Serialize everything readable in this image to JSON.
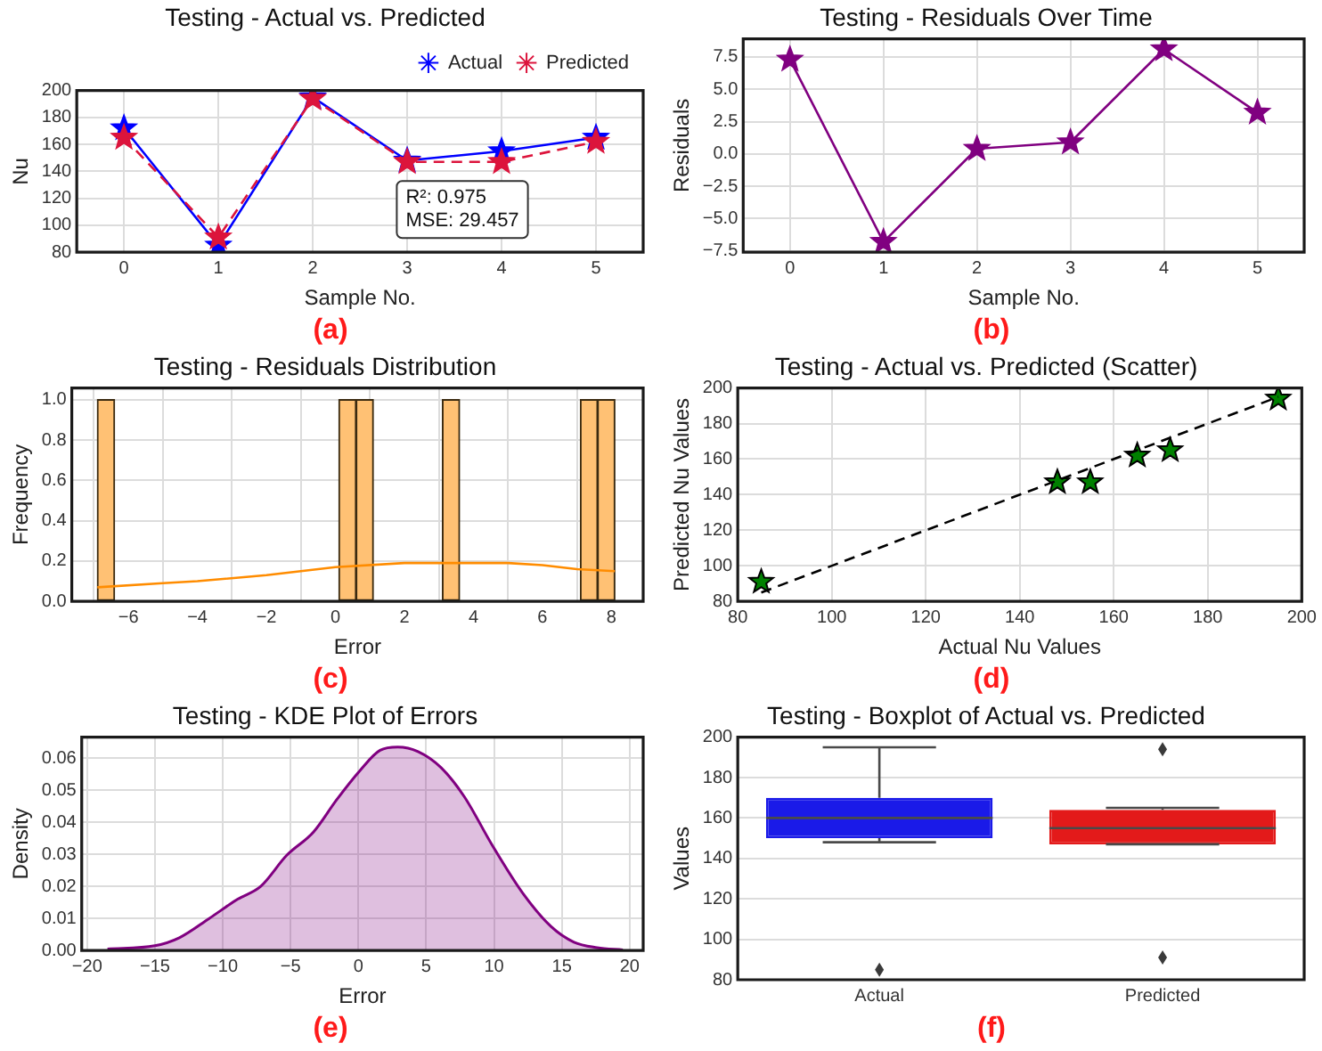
{
  "chart_data": [
    {
      "type": "line",
      "title": "Testing - Actual vs. Predicted",
      "xlabel": "Sample No.",
      "ylabel": "Nu",
      "categories": [
        "0",
        "1",
        "2",
        "3",
        "4",
        "5"
      ],
      "series": [
        {
          "name": "Actual",
          "color": "#0000ff",
          "values": [
            172,
            85,
            195,
            148,
            155,
            165
          ]
        },
        {
          "name": "Predicted",
          "color": "#dc143c",
          "line_style": "dashed",
          "values": [
            165,
            91,
            194,
            147,
            147,
            162
          ]
        }
      ],
      "marker": "star",
      "ylim": [
        80,
        200
      ],
      "yticks": [
        80,
        100,
        120,
        140,
        160,
        180,
        200
      ],
      "grid": true,
      "legend": "top right",
      "annotations": [
        "R²: 0.975\nMSE: 29.457",
        "(a)"
      ]
    },
    {
      "type": "line",
      "title": "Testing - Residuals Over Time",
      "xlabel": "Sample No.",
      "ylabel": "Residuals",
      "categories": [
        "0",
        "1",
        "2",
        "3",
        "4",
        "5"
      ],
      "series": [
        {
          "color": "#800080",
          "values": [
            7.3,
            -6.8,
            0.4,
            0.9,
            8.1,
            3.2
          ]
        }
      ],
      "marker": "star",
      "ylim": [
        -7.6,
        8.9
      ],
      "yticks": [
        {
          "value": -7.5,
          "label": "−7.5"
        },
        {
          "value": -5,
          "label": "−5.0"
        },
        {
          "value": -2.5,
          "label": "−2.5"
        },
        {
          "value": 0,
          "label": "0.0"
        },
        {
          "value": 2.5,
          "label": "2.5"
        },
        {
          "value": 5,
          "label": "5.0"
        },
        {
          "value": 7.5,
          "label": "7.5"
        }
      ],
      "grid": true,
      "annotations": [
        "(b)"
      ]
    },
    {
      "type": "histogram",
      "title": "Testing - Residuals Distribution",
      "xlabel": "Error",
      "ylabel": "Frequency",
      "series": [
        {
          "type": "histogram",
          "color": "#ffc174",
          "bins": [
            -6.9,
            -6.4,
            -5.9,
            -5.4,
            -4.9,
            -4.4,
            -3.9,
            -3.4,
            -2.9,
            -2.4,
            -1.9,
            -1.4,
            -0.9,
            -0.4,
            0.1,
            0.6,
            1.1,
            1.6,
            2.1,
            2.6,
            3.1,
            3.6,
            4.1,
            4.6,
            5.1,
            5.6,
            6.1,
            6.6,
            7.1,
            7.6,
            8.1
          ],
          "values": [
            1,
            0,
            0,
            0,
            0,
            0,
            0,
            0,
            0,
            0,
            0,
            0,
            0,
            0,
            1,
            1,
            0,
            0,
            0,
            0,
            1,
            0,
            0,
            0,
            0,
            0,
            0,
            0,
            1,
            1
          ]
        },
        {
          "type": "line",
          "color": "#ff8c00",
          "x": [
            -6.9,
            -5,
            -4,
            -2,
            0,
            2,
            3.5,
            5,
            6,
            7,
            8.1
          ],
          "values": [
            0.07,
            0.09,
            0.1,
            0.13,
            0.17,
            0.19,
            0.19,
            0.19,
            0.18,
            0.16,
            0.15
          ]
        }
      ],
      "xlim": [
        -7.64,
        8.92
      ],
      "xticks": [
        {
          "value": -6,
          "label": "−6"
        },
        {
          "value": -4,
          "label": "−4"
        },
        {
          "value": -2,
          "label": "−2"
        },
        0,
        2,
        4,
        6,
        8
      ],
      "ylim": [
        0,
        1.058
      ],
      "yticks": [
        {
          "value": 0,
          "label": "0.0"
        },
        {
          "value": 0.2,
          "label": "0.2"
        },
        {
          "value": 0.4,
          "label": "0.4"
        },
        {
          "value": 0.6,
          "label": "0.6"
        },
        {
          "value": 0.8,
          "label": "0.8"
        },
        {
          "value": 1,
          "label": "1.0"
        }
      ],
      "grid": true,
      "annotations": [
        "(c)"
      ]
    },
    {
      "type": "scatter",
      "title": "Testing - Actual vs. Predicted (Scatter)",
      "xlabel": "Actual Nu Values",
      "ylabel": "Predicted Nu Values",
      "series": [
        {
          "color": "#008000",
          "x": [
            172,
            85,
            195,
            148,
            155,
            165
          ],
          "values": [
            165,
            91,
            194,
            147,
            147,
            162
          ]
        },
        {
          "type": "line",
          "color": "#000000",
          "line_style": "dashed",
          "marker": "none",
          "x": [
            85,
            195
          ],
          "values": [
            85,
            195
          ]
        }
      ],
      "marker": "star",
      "xlim": [
        80,
        200
      ],
      "xticks": [
        80,
        100,
        120,
        140,
        160,
        180,
        200
      ],
      "ylim": [
        80,
        200
      ],
      "yticks": [
        80,
        100,
        120,
        140,
        160,
        180,
        200
      ],
      "grid": true,
      "annotations": [
        "(d)"
      ]
    },
    {
      "type": "area",
      "title": "Testing - KDE Plot of Errors",
      "xlabel": "Error",
      "ylabel": "Density",
      "series": [
        {
          "color": "#800080",
          "x": [
            -18.5,
            -15,
            -13.2,
            -11,
            -8.9,
            -7.2,
            -5.3,
            -3.3,
            -1.6,
            0.1,
            1.6,
            2.9,
            4.4,
            6.1,
            7.8,
            9.9,
            12.1,
            14.2,
            15.9,
            17.6,
            19.5
          ],
          "values": [
            0.0005,
            0.0015,
            0.004,
            0.01,
            0.016,
            0.02,
            0.0296,
            0.037,
            0.047,
            0.056,
            0.0624,
            0.0634,
            0.062,
            0.057,
            0.048,
            0.0326,
            0.018,
            0.0075,
            0.0026,
            0.0009,
            0.0002
          ]
        }
      ],
      "xlim": [
        -20.4,
        21
      ],
      "xticks": [
        {
          "value": -20,
          "label": "−20"
        },
        {
          "value": -15,
          "label": "−15"
        },
        {
          "value": -10,
          "label": "−10"
        },
        {
          "value": -5,
          "label": "−5"
        },
        0,
        5,
        10,
        15,
        20
      ],
      "ylim": [
        0,
        0.0665
      ],
      "yticks": [
        {
          "value": 0,
          "label": "0.00"
        },
        {
          "value": 0.01,
          "label": "0.01"
        },
        {
          "value": 0.02,
          "label": "0.02"
        },
        {
          "value": 0.03,
          "label": "0.03"
        },
        {
          "value": 0.04,
          "label": "0.04"
        },
        {
          "value": 0.05,
          "label": "0.05"
        },
        {
          "value": 0.06,
          "label": "0.06"
        }
      ],
      "grid": true,
      "annotations": [
        "(e)"
      ]
    },
    {
      "type": "box",
      "title": "Testing - Boxplot of Actual vs. Predicted",
      "ylabel": "Values",
      "categories": [
        "Actual",
        "Predicted"
      ],
      "colors": [
        "#1a1ae8",
        "#e31a1a"
      ],
      "boxes": [
        {
          "low": 148,
          "q1": 150,
          "median": 160,
          "q3": 170,
          "high": 195,
          "outliers": [
            85
          ]
        },
        {
          "low": 147,
          "q1": 147,
          "median": 155,
          "q3": 164,
          "high": 165,
          "outliers": [
            91,
            194
          ]
        }
      ],
      "ylim": [
        80,
        200
      ],
      "yticks": [
        80,
        100,
        120,
        140,
        160,
        180,
        200
      ],
      "grid": "y",
      "annotations": [
        "(f)"
      ]
    }
  ]
}
